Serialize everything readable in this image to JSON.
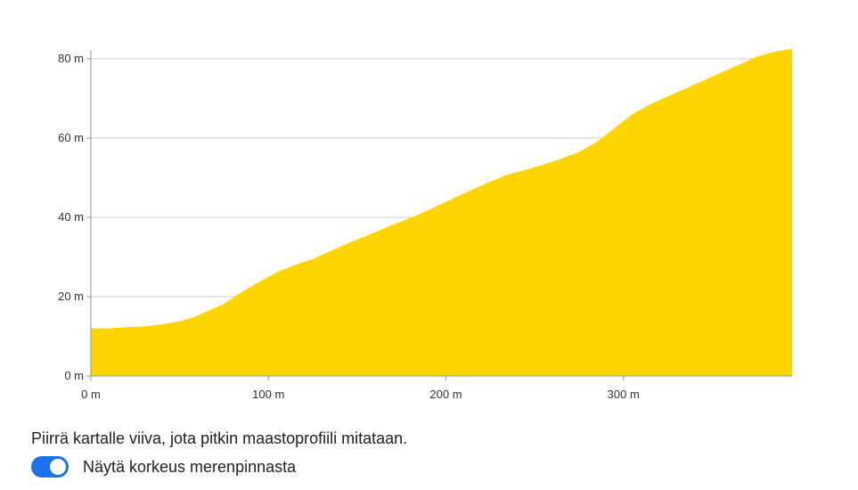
{
  "chart_data": {
    "type": "area",
    "x_unit": "m",
    "y_unit": "m",
    "xlim": [
      0,
      395
    ],
    "ylim": [
      0,
      80
    ],
    "x_ticks": [
      0,
      100,
      200,
      300
    ],
    "y_ticks": [
      0,
      20,
      40,
      60,
      80
    ],
    "x_tick_labels": [
      "0 m",
      "100 m",
      "200 m",
      "300 m"
    ],
    "y_tick_labels": [
      "0 m",
      "20 m",
      "40 m",
      "60 m",
      "80 m"
    ],
    "grid": true,
    "color": "#FFD500",
    "x": [
      0,
      10,
      20,
      30,
      40,
      50,
      58,
      65,
      75,
      85,
      95,
      105,
      115,
      125,
      135,
      145,
      155,
      165,
      175,
      185,
      195,
      205,
      215,
      225,
      235,
      245,
      255,
      265,
      275,
      285,
      295,
      305,
      315,
      325,
      335,
      345,
      355,
      365,
      375,
      385,
      395
    ],
    "values": [
      12.0,
      12.0,
      12.3,
      12.5,
      13.0,
      13.8,
      14.8,
      16.2,
      18.2,
      21.2,
      23.8,
      26.2,
      28.0,
      29.5,
      31.5,
      33.5,
      35.3,
      37.2,
      39.0,
      40.8,
      42.8,
      45.0,
      47.0,
      49.0,
      50.8,
      52.0,
      53.3,
      54.8,
      56.5,
      59.0,
      62.5,
      66.0,
      68.5,
      70.5,
      72.5,
      74.5,
      76.5,
      78.5,
      80.5,
      81.8,
      82.5
    ]
  },
  "controls": {
    "instruction": "Piirrä kartalle viiva, jota pitkin maastoprofiili mitataan.",
    "toggle_label": "Näytä korkeus merenpinnasta",
    "toggle_on": true,
    "toggle_color": "#1a73e8"
  }
}
